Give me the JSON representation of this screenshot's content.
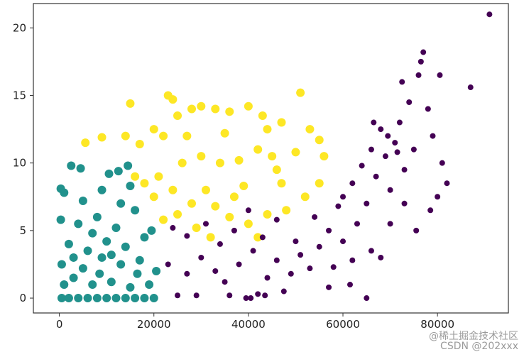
{
  "chart_data": {
    "type": "scatter",
    "title": "",
    "xlabel": "",
    "ylabel": "",
    "xlim": [
      -5500,
      95000
    ],
    "ylim": [
      -1.1,
      21.8
    ],
    "grid": false,
    "legend": "none",
    "x_ticks": [
      "0",
      "20000",
      "40000",
      "60000",
      "80000"
    ],
    "x_tick_values": [
      0,
      20000,
      40000,
      60000,
      80000
    ],
    "y_ticks": [
      "0",
      "5",
      "10",
      "15",
      "20"
    ],
    "y_tick_values": [
      0,
      5,
      10,
      15,
      20
    ],
    "series": [
      {
        "color": "#21918c",
        "points": [
          [
            500,
            0
          ],
          [
            2000,
            0
          ],
          [
            4000,
            0
          ],
          [
            6000,
            0
          ],
          [
            8000,
            0
          ],
          [
            10000,
            0
          ],
          [
            12000,
            0
          ],
          [
            14000,
            0
          ],
          [
            16000,
            0
          ],
          [
            18000,
            0
          ],
          [
            20000,
            0
          ],
          [
            1000,
            1
          ],
          [
            3000,
            1.5
          ],
          [
            7000,
            1
          ],
          [
            11000,
            1.2
          ],
          [
            15000,
            0.8
          ],
          [
            19000,
            1
          ],
          [
            500,
            2.5
          ],
          [
            5000,
            2.2
          ],
          [
            9000,
            3
          ],
          [
            13000,
            2.5
          ],
          [
            17000,
            2.8
          ],
          [
            20500,
            2
          ],
          [
            2000,
            4
          ],
          [
            6000,
            3.5
          ],
          [
            10000,
            4.2
          ],
          [
            14000,
            3.8
          ],
          [
            18000,
            4.5
          ],
          [
            300,
            5.8
          ],
          [
            4000,
            5.5
          ],
          [
            8000,
            6
          ],
          [
            12000,
            5.2
          ],
          [
            16000,
            6.5
          ],
          [
            19500,
            5
          ],
          [
            1000,
            7.8
          ],
          [
            5000,
            7.2
          ],
          [
            9000,
            8
          ],
          [
            13000,
            7
          ],
          [
            15000,
            8.3
          ],
          [
            2500,
            9.8
          ],
          [
            4500,
            9.6
          ],
          [
            10500,
            9.2
          ],
          [
            12500,
            9.4
          ],
          [
            14500,
            9.8
          ],
          [
            300,
            8.1
          ],
          [
            7000,
            4.8
          ],
          [
            11000,
            3.2
          ],
          [
            3000,
            3
          ],
          [
            16500,
            1.8
          ],
          [
            8500,
            1.8
          ]
        ]
      },
      {
        "color": "#fde725",
        "points": [
          [
            23000,
            15
          ],
          [
            24000,
            14.7
          ],
          [
            15000,
            14.4
          ],
          [
            14000,
            12
          ],
          [
            9000,
            11.9
          ],
          [
            5500,
            11.5
          ],
          [
            17000,
            11.4
          ],
          [
            20000,
            12.5
          ],
          [
            22000,
            12
          ],
          [
            25000,
            13.5
          ],
          [
            28000,
            14
          ],
          [
            30000,
            14.2
          ],
          [
            33000,
            14
          ],
          [
            36000,
            13.8
          ],
          [
            40000,
            14.2
          ],
          [
            43000,
            13.5
          ],
          [
            47000,
            13
          ],
          [
            51000,
            15.2
          ],
          [
            55000,
            11.7
          ],
          [
            56000,
            10.5
          ],
          [
            55000,
            8.5
          ],
          [
            52000,
            7.5
          ],
          [
            48000,
            6.5
          ],
          [
            44000,
            6.2
          ],
          [
            40000,
            5.5
          ],
          [
            36000,
            6
          ],
          [
            32000,
            4.5
          ],
          [
            28000,
            7
          ],
          [
            24000,
            8
          ],
          [
            21000,
            9
          ],
          [
            18000,
            8.5
          ],
          [
            16000,
            9
          ],
          [
            20000,
            7.5
          ],
          [
            22000,
            5.8
          ],
          [
            26000,
            10
          ],
          [
            30000,
            10.5
          ],
          [
            34000,
            10
          ],
          [
            38000,
            10.2
          ],
          [
            42000,
            11
          ],
          [
            46000,
            9.5
          ],
          [
            50000,
            10.8
          ],
          [
            27000,
            12
          ],
          [
            35000,
            12.2
          ],
          [
            44000,
            12.5
          ],
          [
            31000,
            8
          ],
          [
            39000,
            8.3
          ],
          [
            47000,
            8.5
          ],
          [
            29000,
            5.2
          ],
          [
            42000,
            4.5
          ],
          [
            53000,
            12.5
          ],
          [
            25000,
            6.2
          ],
          [
            33000,
            6.8
          ],
          [
            37000,
            7.5
          ],
          [
            45000,
            10.5
          ]
        ]
      },
      {
        "color": "#440154",
        "points": [
          [
            25000,
            0.2
          ],
          [
            29000,
            0.2
          ],
          [
            36000,
            0.2
          ],
          [
            39500,
            0
          ],
          [
            40500,
            0
          ],
          [
            42000,
            0.3
          ],
          [
            43500,
            0.2
          ],
          [
            47500,
            0.5
          ],
          [
            57000,
            0.8
          ],
          [
            61500,
            1
          ],
          [
            65000,
            0
          ],
          [
            23000,
            2.5
          ],
          [
            27000,
            1.8
          ],
          [
            30000,
            3
          ],
          [
            33000,
            2
          ],
          [
            35000,
            1.2
          ],
          [
            38000,
            2.5
          ],
          [
            41000,
            3.5
          ],
          [
            44000,
            1.5
          ],
          [
            46000,
            2.8
          ],
          [
            49000,
            1.8
          ],
          [
            51000,
            3.2
          ],
          [
            53000,
            2.2
          ],
          [
            55000,
            3.8
          ],
          [
            58000,
            2.3
          ],
          [
            60000,
            4.2
          ],
          [
            62000,
            2.8
          ],
          [
            24000,
            5.2
          ],
          [
            27000,
            4.6
          ],
          [
            31000,
            5.5
          ],
          [
            34000,
            4
          ],
          [
            37000,
            5
          ],
          [
            40000,
            6.5
          ],
          [
            43000,
            4.5
          ],
          [
            46000,
            5.8
          ],
          [
            50000,
            4.2
          ],
          [
            54000,
            6
          ],
          [
            57000,
            5
          ],
          [
            59000,
            6.8
          ],
          [
            63000,
            5.5
          ],
          [
            65000,
            7
          ],
          [
            66000,
            3.5
          ],
          [
            68000,
            3
          ],
          [
            70000,
            5.5
          ],
          [
            62000,
            8.5
          ],
          [
            64000,
            9.8
          ],
          [
            66000,
            11
          ],
          [
            67000,
            9
          ],
          [
            68000,
            12.5
          ],
          [
            69000,
            10.5
          ],
          [
            70000,
            8
          ],
          [
            71000,
            11.5
          ],
          [
            72000,
            13
          ],
          [
            73000,
            9.5
          ],
          [
            74000,
            14.5
          ],
          [
            75000,
            11
          ],
          [
            76000,
            16.5
          ],
          [
            77000,
            18.2
          ],
          [
            78000,
            14
          ],
          [
            79000,
            12
          ],
          [
            80000,
            7.5
          ],
          [
            81000,
            10
          ],
          [
            82000,
            8.5
          ],
          [
            87000,
            15.6
          ],
          [
            91000,
            21
          ],
          [
            60000,
            7.5
          ],
          [
            66500,
            13
          ],
          [
            71500,
            10.8
          ],
          [
            69500,
            12
          ],
          [
            73000,
            7
          ],
          [
            75500,
            5
          ],
          [
            78500,
            6.5
          ],
          [
            80500,
            16.5
          ],
          [
            76500,
            17.5
          ],
          [
            72500,
            16
          ]
        ]
      }
    ]
  },
  "watermark": {
    "line1": "@稀土掘金技术社区",
    "line2": "CSDN @202xxx"
  }
}
